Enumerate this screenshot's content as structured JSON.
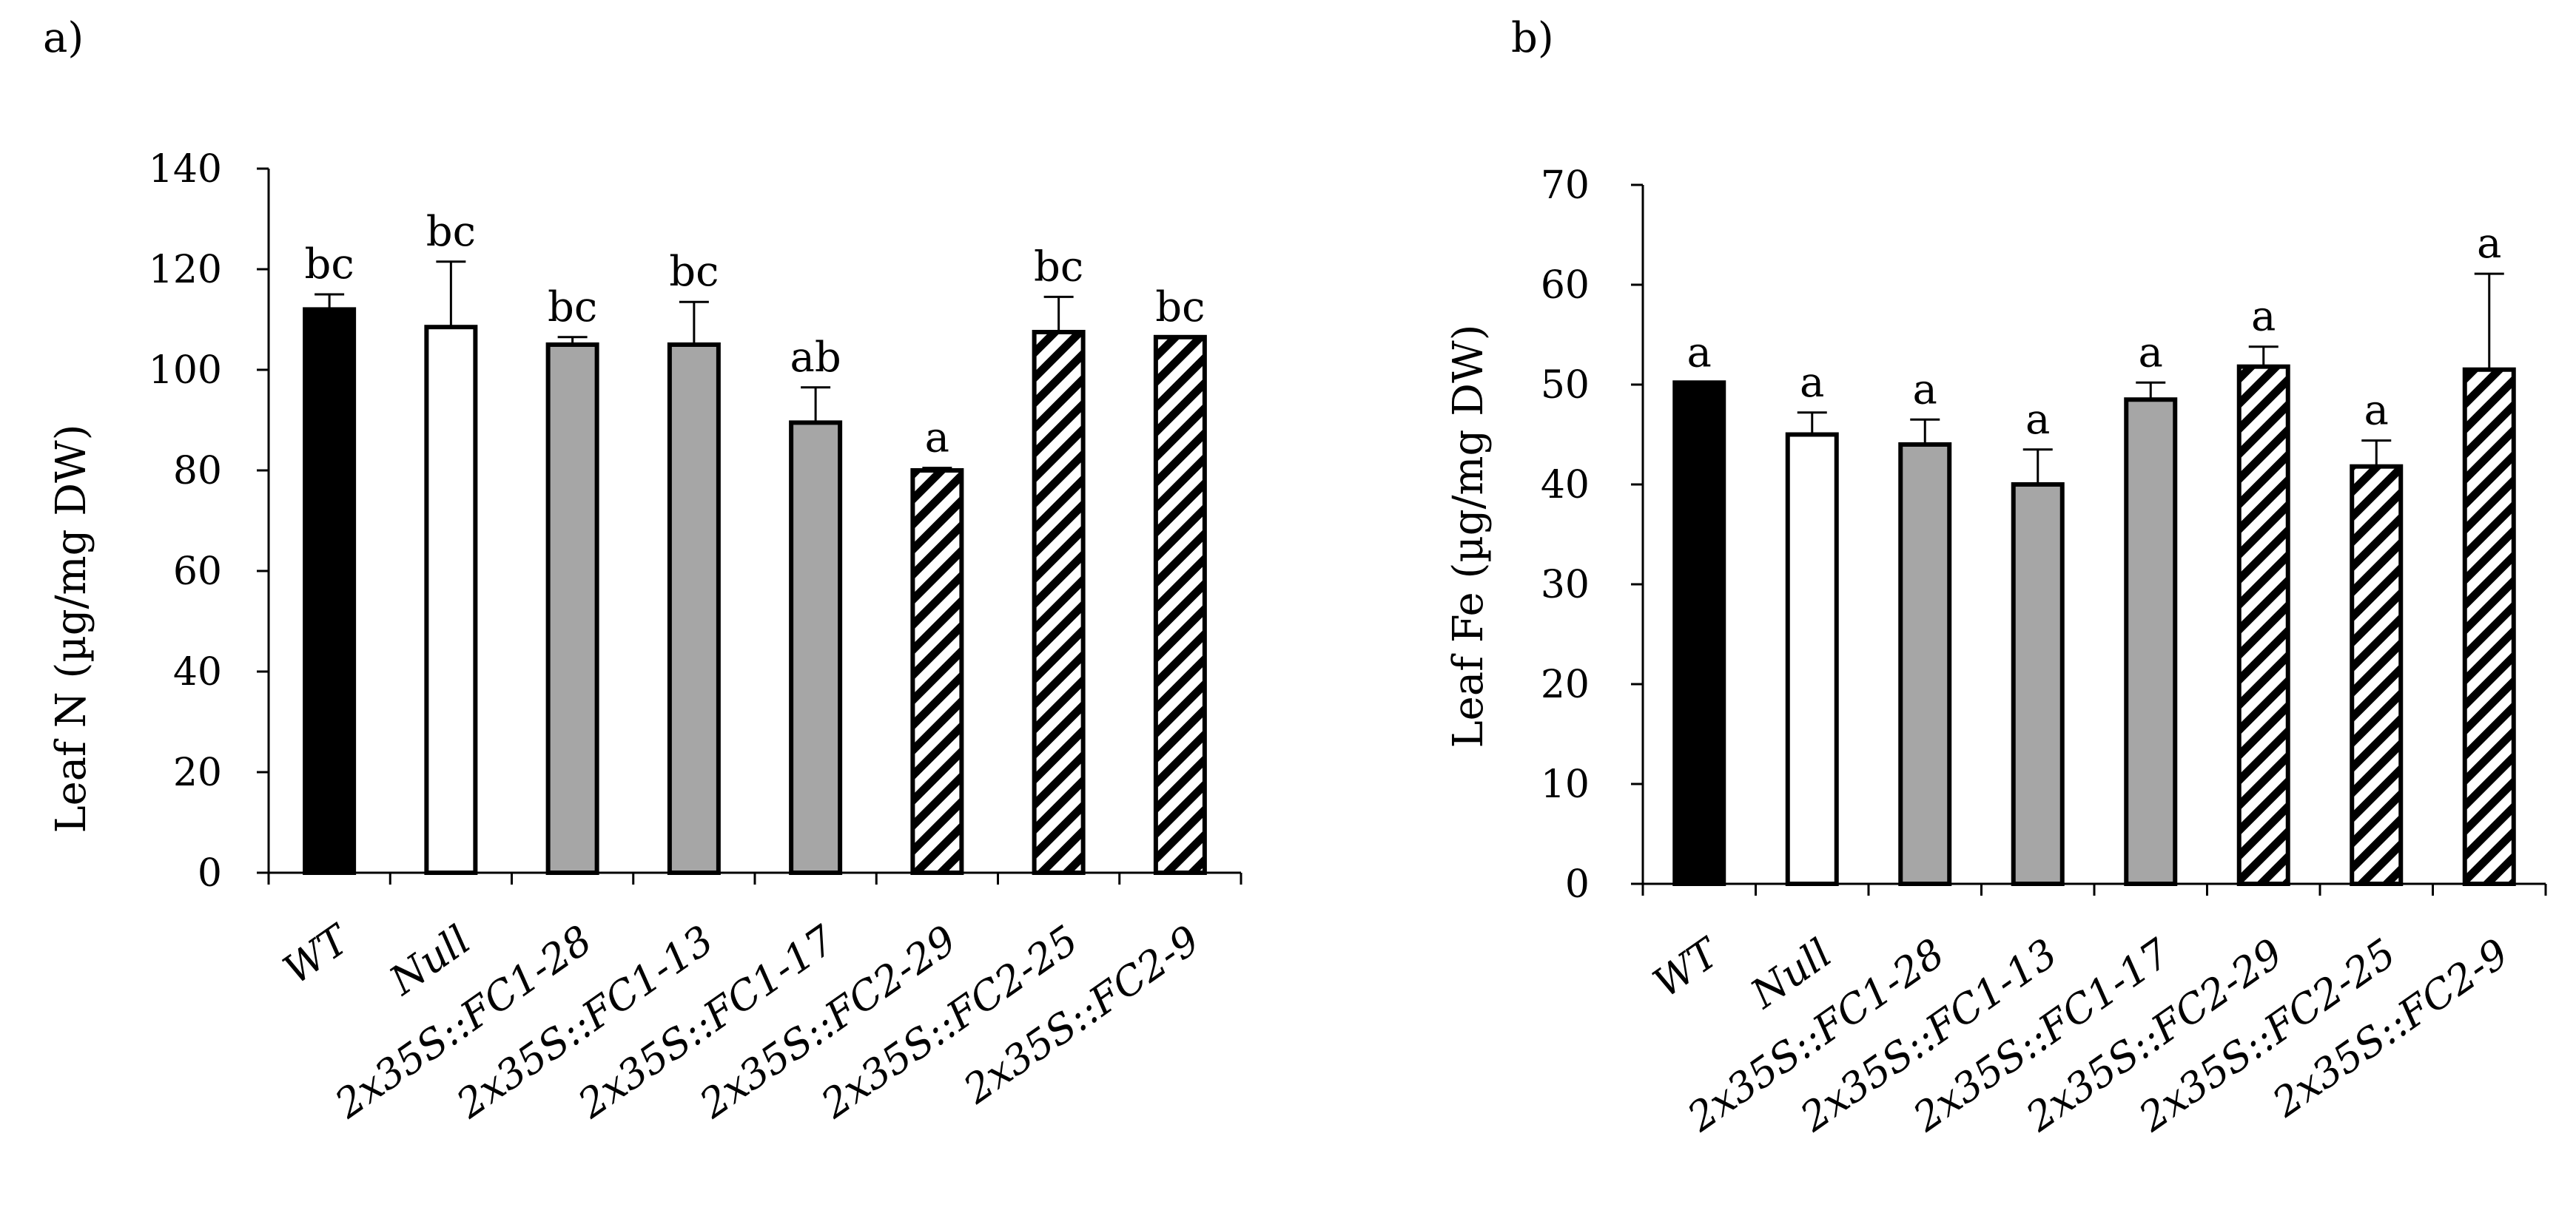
{
  "colors": {
    "black": "#000000",
    "white": "#ffffff",
    "gray": "#a6a6a6",
    "axis": "#000000"
  },
  "chart_data": [
    {
      "panel_label": "a)",
      "type": "bar",
      "title": "",
      "xlabel": "",
      "ylabel": "Leaf N (µg/mg DW)",
      "ylim": [
        0,
        140
      ],
      "yticks": [
        "0",
        "20",
        "40",
        "60",
        "80",
        "100",
        "120",
        "140"
      ],
      "categories": [
        "WT",
        "Null",
        "2x35S::FC1-28",
        "2x35S::FC1-13",
        "2x35S::FC1-17",
        "2x35S::FC2-29",
        "2x35S::FC2-25",
        "2x35S::FC2-9"
      ],
      "values": [
        112,
        108.5,
        105,
        105,
        89.5,
        80,
        107.5,
        106.5
      ],
      "errors": [
        3,
        13,
        1.5,
        8.5,
        7,
        0.5,
        7,
        0
      ],
      "significance": [
        "bc",
        "bc",
        "bc",
        "bc",
        "ab",
        "a",
        "bc",
        "bc"
      ],
      "fills": [
        "black",
        "white",
        "gray",
        "gray",
        "gray",
        "hatch",
        "hatch",
        "hatch"
      ]
    },
    {
      "panel_label": "b)",
      "type": "bar",
      "title": "",
      "xlabel": "",
      "ylabel": "Leaf Fe (µg/mg DW)",
      "ylim": [
        0,
        70
      ],
      "yticks": [
        "0",
        "10",
        "20",
        "30",
        "40",
        "50",
        "60",
        "70"
      ],
      "categories": [
        "WT",
        "Null",
        "2x35S::FC1-28",
        "2x35S::FC1-13",
        "2x35S::FC1-17",
        "2x35S::FC2-29",
        "2x35S::FC2-25",
        "2x35S::FC2-9"
      ],
      "values": [
        50.2,
        45,
        44,
        40,
        48.5,
        51.8,
        41.8,
        51.5
      ],
      "errors": [
        0,
        2.2,
        2.5,
        3.5,
        1.7,
        2,
        2.6,
        9.6
      ],
      "significance": [
        "a",
        "a",
        "a",
        "a",
        "a",
        "a",
        "a",
        "a"
      ],
      "fills": [
        "black",
        "white",
        "gray",
        "gray",
        "gray",
        "hatch",
        "hatch",
        "hatch"
      ]
    }
  ]
}
